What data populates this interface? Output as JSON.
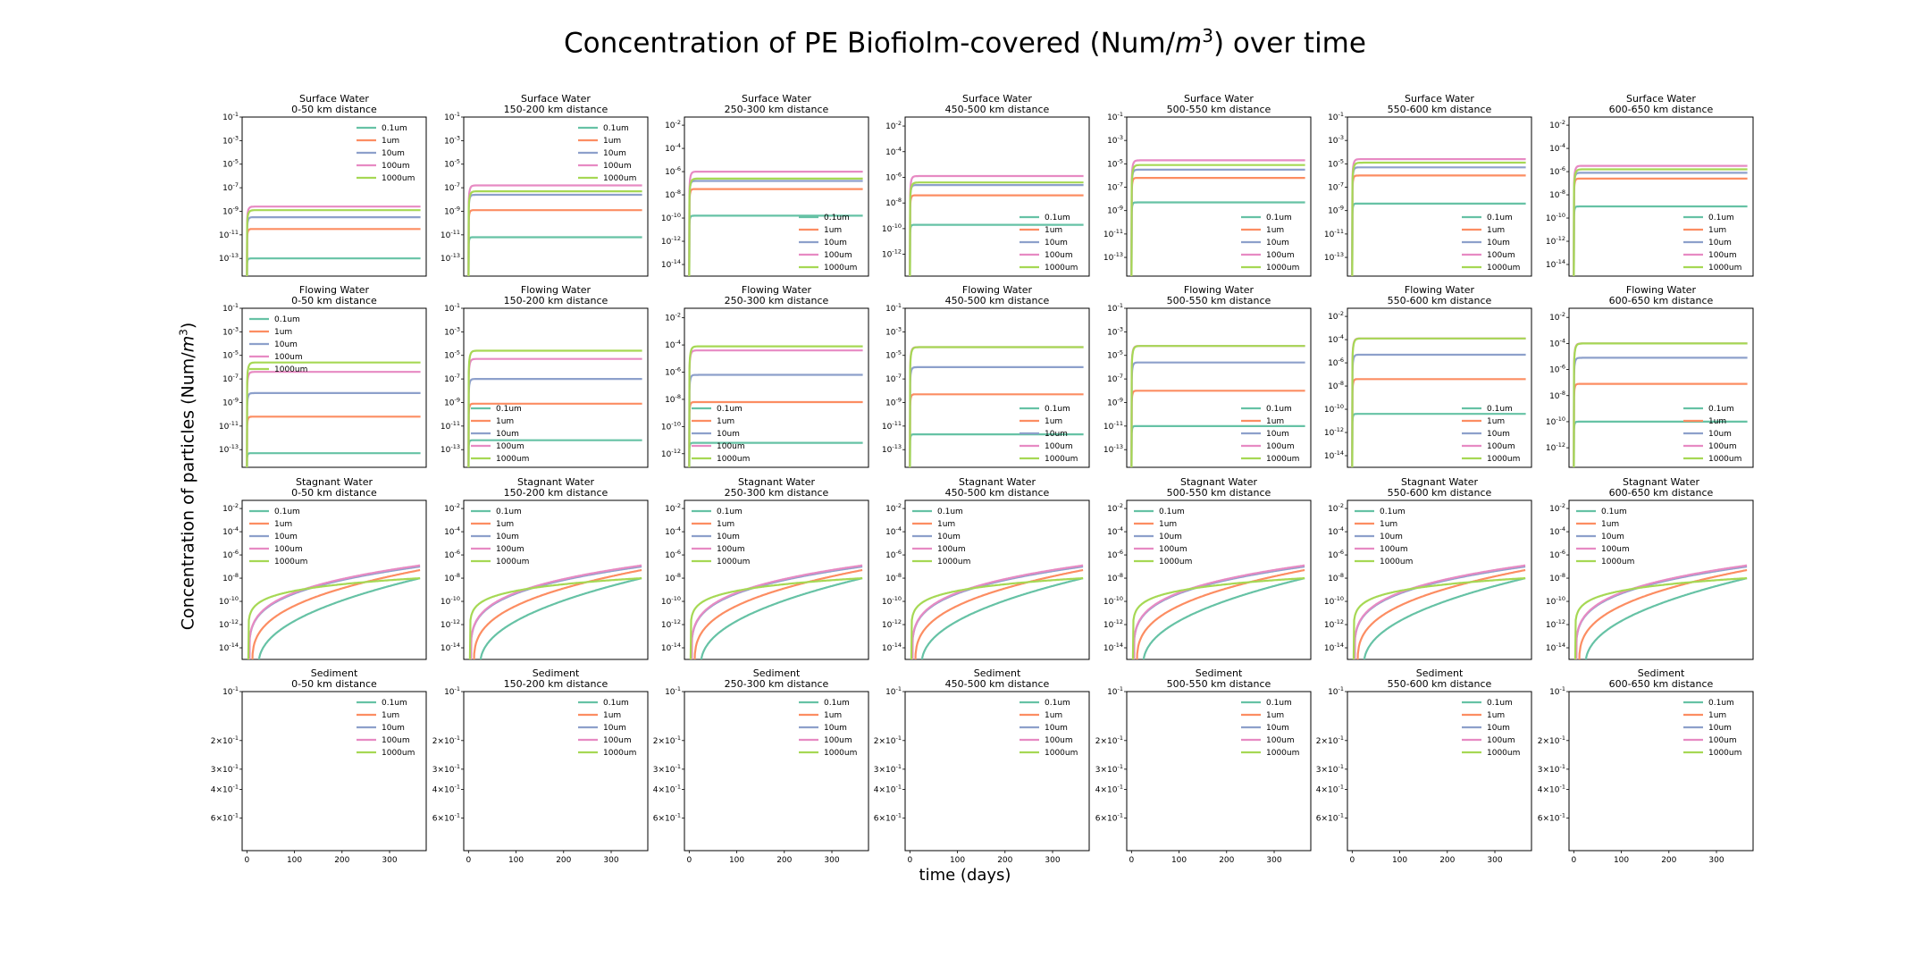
{
  "figure": {
    "title_prefix": "Concentration of PE Biofiolm-covered (Num/",
    "title_unit": "m",
    "title_exp": "3",
    "title_suffix": ") over time",
    "ylabel_prefix": "Concentration of particles (Num/",
    "ylabel_unit": "m",
    "ylabel_exp": "3",
    "ylabel_suffix": ")",
    "xlabel": "time (days)"
  },
  "chart_data": {
    "type": "line",
    "layout": "4x7 grid of line charts",
    "y_scale": "log",
    "x": [
      0,
      25,
      50,
      75,
      100,
      150,
      200,
      250,
      300,
      365
    ],
    "xlim": [
      -10,
      377
    ],
    "x_ticks": [
      0,
      100,
      200,
      300
    ],
    "legend_entries": [
      "0.1um",
      "1um",
      "10um",
      "100um",
      "1000um"
    ],
    "series_colors": [
      "#66c2a5",
      "#fc8d62",
      "#8da0cb",
      "#e78ac3",
      "#a6d854"
    ],
    "compartments": [
      "Surface Water",
      "Flowing Water",
      "Stagnant Water",
      "Sediment"
    ],
    "distances": [
      "0-50 km distance",
      "150-200 km distance",
      "250-300 km distance",
      "450-500 km distance",
      "500-550 km distance",
      "550-600 km distance",
      "600-650 km distance"
    ],
    "rows": [
      {
        "compartment": "Surface Water",
        "panels": [
          {
            "distance": "0-50 km distance",
            "ylim_exp": [
              -14.5,
              -1
            ],
            "tick_exps": [
              -1,
              -3,
              -5,
              -7,
              -9,
              -11,
              -13
            ],
            "legend": "upper-right",
            "plateau_exp": [
              -13.0,
              -10.5,
              -9.5,
              -8.6,
              -8.9
            ]
          },
          {
            "distance": "150-200 km distance",
            "ylim_exp": [
              -14.5,
              -1
            ],
            "tick_exps": [
              -1,
              -3,
              -5,
              -7,
              -9,
              -11,
              -13
            ],
            "legend": "upper-right",
            "plateau_exp": [
              -11.2,
              -8.9,
              -7.6,
              -6.8,
              -7.3
            ]
          },
          {
            "distance": "250-300 km distance",
            "ylim_exp": [
              -15,
              -1.3
            ],
            "tick_exps": [
              -2,
              -4,
              -6,
              -8,
              -10,
              -12,
              -14
            ],
            "legend": "lower-right",
            "plateau_exp": [
              -9.8,
              -7.5,
              -6.8,
              -6.0,
              -6.6
            ]
          },
          {
            "distance": "450-500 km distance",
            "ylim_exp": [
              -13.7,
              -1.3
            ],
            "tick_exps": [
              -2,
              -4,
              -6,
              -8,
              -10,
              -12
            ],
            "legend": "lower-right",
            "plateau_exp": [
              -9.7,
              -7.4,
              -6.6,
              -5.9,
              -6.4
            ]
          },
          {
            "distance": "500-550 km distance",
            "ylim_exp": [
              -14.6,
              -1
            ],
            "tick_exps": [
              -1,
              -3,
              -5,
              -7,
              -9,
              -11,
              -13
            ],
            "legend": "lower-right",
            "plateau_exp": [
              -8.3,
              -6.2,
              -5.5,
              -4.7,
              -5.1
            ]
          },
          {
            "distance": "550-600 km distance",
            "ylim_exp": [
              -14.6,
              -1
            ],
            "tick_exps": [
              -1,
              -3,
              -5,
              -7,
              -9,
              -11,
              -13
            ],
            "legend": "lower-right",
            "plateau_exp": [
              -8.4,
              -6.0,
              -5.3,
              -4.6,
              -4.9
            ]
          },
          {
            "distance": "600-650 km distance",
            "ylim_exp": [
              -15,
              -1.3
            ],
            "tick_exps": [
              -2,
              -4,
              -6,
              -8,
              -10,
              -12,
              -14
            ],
            "legend": "lower-right",
            "plateau_exp": [
              -9.0,
              -6.6,
              -6.1,
              -5.5,
              -5.8
            ]
          }
        ]
      },
      {
        "compartment": "Flowing Water",
        "panels": [
          {
            "distance": "0-50 km distance",
            "ylim_exp": [
              -14.5,
              -1
            ],
            "tick_exps": [
              -1,
              -3,
              -5,
              -7,
              -9,
              -11,
              -13
            ],
            "legend": "upper-left",
            "plateau_exp": [
              -13.3,
              -10.2,
              -8.2,
              -6.4,
              -5.6
            ]
          },
          {
            "distance": "150-200 km distance",
            "ylim_exp": [
              -14.5,
              -1
            ],
            "tick_exps": [
              -1,
              -3,
              -5,
              -7,
              -9,
              -11,
              -13
            ],
            "legend": "lower-left",
            "plateau_exp": [
              -12.2,
              -9.1,
              -7.0,
              -5.3,
              -4.6
            ]
          },
          {
            "distance": "250-300 km distance",
            "ylim_exp": [
              -13,
              -1.3
            ],
            "tick_exps": [
              -2,
              -4,
              -6,
              -8,
              -10,
              -12
            ],
            "legend": "lower-left",
            "plateau_exp": [
              -11.2,
              -8.2,
              -6.2,
              -4.4,
              -4.1
            ]
          },
          {
            "distance": "450-500 km distance",
            "ylim_exp": [
              -14.5,
              -1
            ],
            "tick_exps": [
              -1,
              -3,
              -5,
              -7,
              -9,
              -11,
              -13
            ],
            "legend": "lower-right",
            "plateau_exp": [
              -11.7,
              -8.3,
              -6.0,
              -4.3,
              -4.3
            ]
          },
          {
            "distance": "500-550 km distance",
            "ylim_exp": [
              -14.5,
              -1
            ],
            "tick_exps": [
              -1,
              -3,
              -5,
              -7,
              -9,
              -11,
              -13
            ],
            "legend": "lower-right",
            "plateau_exp": [
              -11.0,
              -8.0,
              -5.6,
              -4.2,
              -4.2
            ]
          },
          {
            "distance": "550-600 km distance",
            "ylim_exp": [
              -15,
              -1.3
            ],
            "tick_exps": [
              -2,
              -4,
              -6,
              -8,
              -10,
              -12,
              -14
            ],
            "legend": "lower-right",
            "plateau_exp": [
              -10.4,
              -7.4,
              -5.3,
              -3.9,
              -3.9
            ]
          },
          {
            "distance": "600-650 km distance",
            "ylim_exp": [
              -13.5,
              -1.3
            ],
            "tick_exps": [
              -2,
              -4,
              -6,
              -8,
              -10,
              -12
            ],
            "legend": "lower-right",
            "plateau_exp": [
              -10.0,
              -7.1,
              -5.1,
              -4.0,
              -4.0
            ]
          }
        ]
      },
      {
        "compartment": "Stagnant Water",
        "panels": [
          {
            "distance": "0-50 km distance",
            "ylim_exp": [
              -15,
              -1.3
            ],
            "tick_exps": [
              -2,
              -4,
              -6,
              -8,
              -10,
              -12,
              -14
            ],
            "legend": "upper-left",
            "end_exp": [
              -8.0,
              -7.3,
              -7.0,
              -6.9,
              -8.0
            ]
          },
          {
            "distance": "150-200 km distance",
            "ylim_exp": [
              -15,
              -1.3
            ],
            "tick_exps": [
              -2,
              -4,
              -6,
              -8,
              -10,
              -12,
              -14
            ],
            "legend": "upper-left",
            "end_exp": [
              -8.0,
              -7.3,
              -7.0,
              -6.9,
              -8.0
            ]
          },
          {
            "distance": "250-300 km distance",
            "ylim_exp": [
              -15,
              -1.3
            ],
            "tick_exps": [
              -2,
              -4,
              -6,
              -8,
              -10,
              -12,
              -14
            ],
            "legend": "upper-left",
            "end_exp": [
              -8.0,
              -7.3,
              -7.0,
              -6.9,
              -8.0
            ]
          },
          {
            "distance": "450-500 km distance",
            "ylim_exp": [
              -15,
              -1.3
            ],
            "tick_exps": [
              -2,
              -4,
              -6,
              -8,
              -10,
              -12,
              -14
            ],
            "legend": "upper-left",
            "end_exp": [
              -8.0,
              -7.3,
              -7.0,
              -6.9,
              -8.0
            ]
          },
          {
            "distance": "500-550 km distance",
            "ylim_exp": [
              -15,
              -1.3
            ],
            "tick_exps": [
              -2,
              -4,
              -6,
              -8,
              -10,
              -12,
              -14
            ],
            "legend": "upper-left",
            "end_exp": [
              -8.0,
              -7.3,
              -7.0,
              -6.9,
              -8.0
            ]
          },
          {
            "distance": "550-600 km distance",
            "ylim_exp": [
              -15,
              -1.3
            ],
            "tick_exps": [
              -2,
              -4,
              -6,
              -8,
              -10,
              -12,
              -14
            ],
            "legend": "upper-left",
            "end_exp": [
              -8.0,
              -7.3,
              -7.0,
              -6.9,
              -8.0
            ]
          },
          {
            "distance": "600-650 km distance",
            "ylim_exp": [
              -15,
              -1.3
            ],
            "tick_exps": [
              -2,
              -4,
              -6,
              -8,
              -10,
              -12,
              -14
            ],
            "legend": "upper-left",
            "end_exp": [
              -8.0,
              -7.3,
              -7.0,
              -6.9,
              -8.0
            ]
          }
        ]
      },
      {
        "compartment": "Sediment",
        "note_scale": "inverted log axis with fractional tick labels, no visible lines",
        "tick_labels": [
          {
            "mantissa": "",
            "exp": "-1",
            "value": 0.1
          },
          {
            "mantissa": "2×",
            "exp": "-1",
            "value": 0.2
          },
          {
            "mantissa": "3×",
            "exp": "-1",
            "value": 0.3
          },
          {
            "mantissa": "4×",
            "exp": "-1",
            "value": 0.4
          },
          {
            "mantissa": "6×",
            "exp": "-1",
            "value": 0.6
          }
        ],
        "ylim_values": [
          0.1,
          0.95
        ],
        "legend": "upper-right",
        "panels": [
          {
            "distance": "0-50 km distance"
          },
          {
            "distance": "150-200 km distance"
          },
          {
            "distance": "250-300 km distance"
          },
          {
            "distance": "450-500 km distance"
          },
          {
            "distance": "500-550 km distance"
          },
          {
            "distance": "550-600 km distance"
          },
          {
            "distance": "600-650 km distance"
          }
        ]
      }
    ]
  }
}
